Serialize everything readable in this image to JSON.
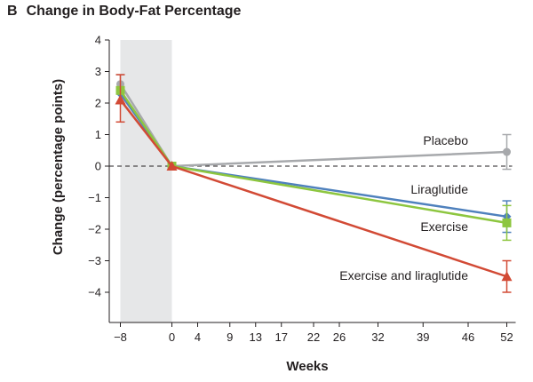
{
  "panel_letter": "B",
  "chart_data": {
    "type": "line",
    "title": "Change in Body-Fat Percentage",
    "xlabel": "Weeks",
    "ylabel": "Change (percentage points)",
    "xticks": [
      -8,
      0,
      4,
      9,
      13,
      17,
      22,
      26,
      32,
      39,
      46,
      52
    ],
    "xtick_labels": [
      "−8",
      "0",
      "4",
      "9",
      "13",
      "17",
      "22",
      "26",
      "32",
      "39",
      "46",
      "52"
    ],
    "yticks": [
      4,
      3,
      2,
      1,
      0,
      -1,
      -2,
      -3,
      -4
    ],
    "ytick_labels": [
      "4",
      "3",
      "2",
      "1",
      "0",
      "−1",
      "−2",
      "−3",
      "−4"
    ],
    "xlim": [
      -8,
      52
    ],
    "ylim": [
      -4.5,
      4
    ],
    "shaded_region": [
      -8,
      0
    ],
    "reference_line_y": 0,
    "series": [
      {
        "name": "Placebo",
        "color": "#a7a9ac",
        "marker": "circle",
        "x": [
          -8,
          0,
          52
        ],
        "y": [
          2.6,
          0,
          0.45
        ],
        "err": [
          [
            -8,
            2.3,
            2.9
          ],
          [
            52,
            -0.1,
            1.0
          ]
        ]
      },
      {
        "name": "Liraglutide",
        "color": "#4f81bd",
        "marker": "diamond",
        "x": [
          -8,
          0,
          52
        ],
        "y": [
          2.3,
          0,
          -1.6
        ],
        "err": [
          [
            52,
            -2.1,
            -1.1
          ]
        ]
      },
      {
        "name": "Exercise",
        "color": "#8dc63f",
        "marker": "square",
        "x": [
          -8,
          0,
          52
        ],
        "y": [
          2.4,
          0,
          -1.8
        ],
        "err": [
          [
            52,
            -2.35,
            -1.25
          ]
        ]
      },
      {
        "name": "Exercise and liraglutide",
        "color": "#d24a35",
        "marker": "triangle",
        "x": [
          -8,
          0,
          52
        ],
        "y": [
          2.1,
          0,
          -3.5
        ],
        "err": [
          [
            -8,
            1.4,
            2.9
          ],
          [
            52,
            -4.0,
            -3.0
          ]
        ]
      }
    ]
  }
}
